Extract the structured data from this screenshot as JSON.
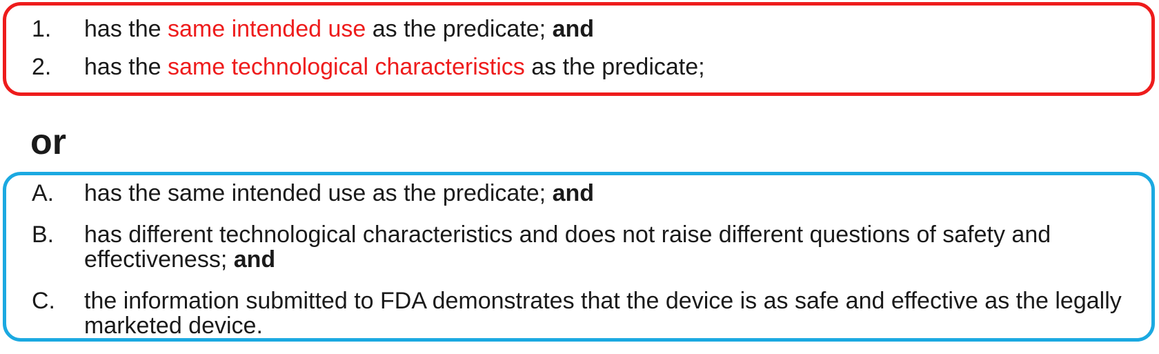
{
  "group_one": {
    "items": [
      {
        "marker": "1.",
        "pre": "has the ",
        "highlight": "same intended use",
        "post": " as the predicate; ",
        "conj": "and"
      },
      {
        "marker": "2.",
        "pre": "has the ",
        "highlight": "same technological characteristics",
        "post": " as the predicate;"
      }
    ],
    "border_color": "#ee1c1c",
    "highlight_color": "#ee1c1c"
  },
  "or_label": "or",
  "group_two": {
    "items": [
      {
        "marker": "A.",
        "text": "has the same intended use as the predicate; ",
        "conj": "and"
      },
      {
        "marker": "B.",
        "text": "has different technological characteristics and does not raise different questions of safety and effectiveness; ",
        "conj": "and"
      },
      {
        "marker": "C.",
        "text": "the information submitted to FDA demonstrates that the device is as safe and effective as the legally marketed device."
      }
    ],
    "border_color": "#1ba9e1"
  }
}
